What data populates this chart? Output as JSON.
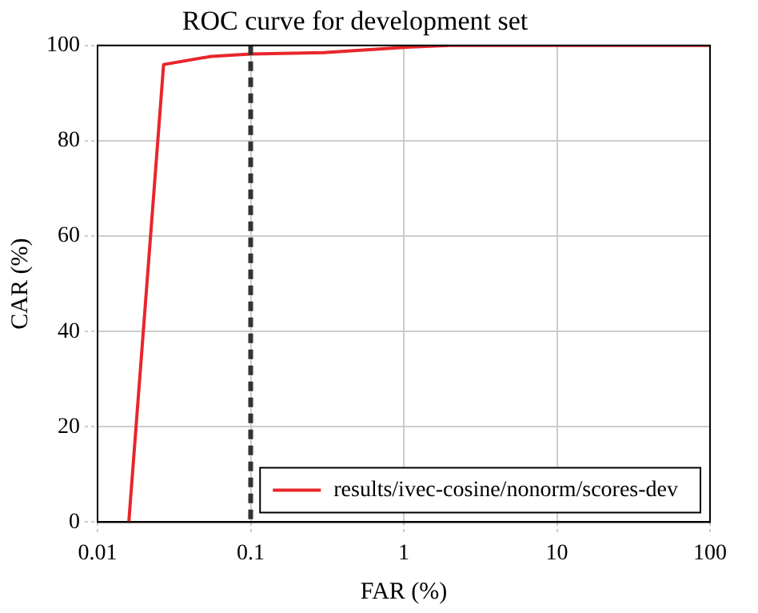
{
  "chart_data": {
    "type": "line",
    "title": "ROC curve for development set",
    "xlabel": "FAR (%)",
    "ylabel": "CAR (%)",
    "log": "x",
    "series": [
      {
        "name": "results/ivec-cosine/nonorm/scores-dev",
        "color": "#e8262b",
        "x": [
          0.016,
          0.027,
          0.055,
          0.1,
          0.3,
          1,
          2,
          100
        ],
        "values": [
          0,
          96,
          97.7,
          98.2,
          98.5,
          99.6,
          100,
          100
        ]
      }
    ],
    "xlim": [
      0.01,
      100
    ],
    "xticks": [
      0.01,
      0.1,
      1,
      10,
      100
    ],
    "ylim": [
      0,
      100
    ],
    "yticks": [
      0,
      20,
      40,
      60,
      80,
      100
    ],
    "ref_lines": [
      {
        "axis": "x",
        "value": 0.1,
        "color": "#333333",
        "line_style": "dashed"
      }
    ],
    "grid": true,
    "legend": "bottom right",
    "marker": "none",
    "line_style": "solid"
  }
}
